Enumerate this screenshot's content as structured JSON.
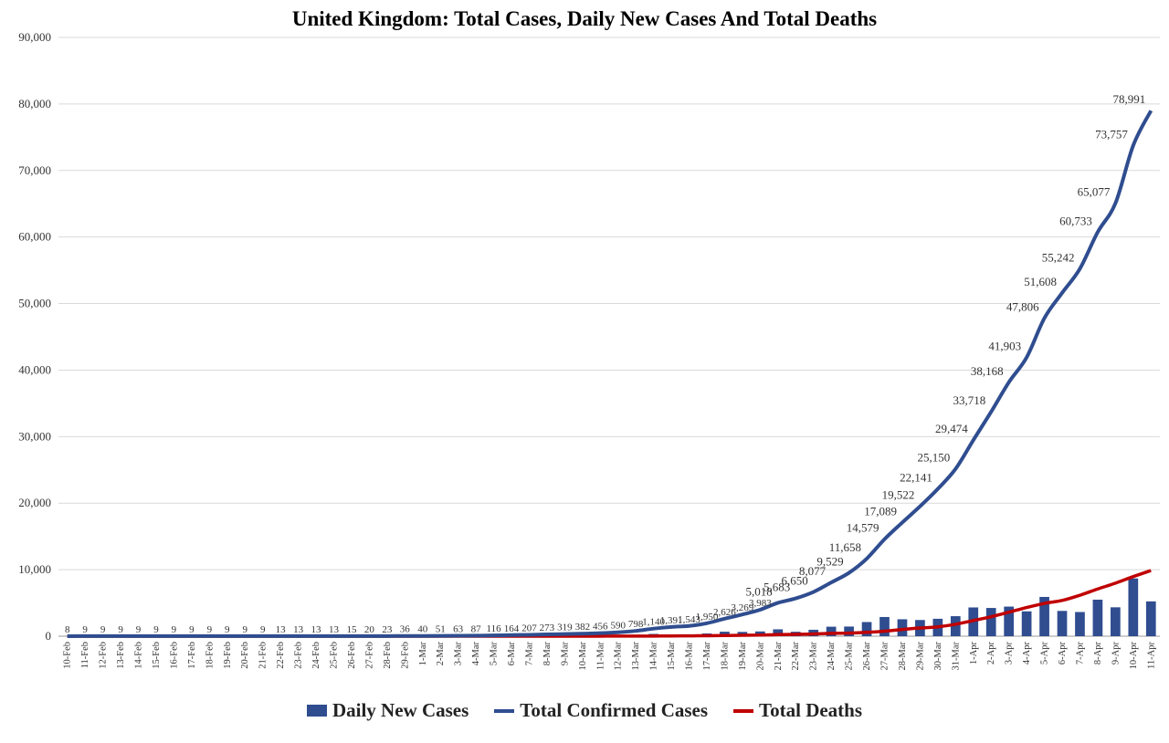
{
  "chart_data": {
    "type": "bar",
    "title": "United Kingdom: Total Cases, Daily New Cases And Total Deaths",
    "xlabel": "",
    "ylabel": "",
    "ylim": [
      0,
      90000
    ],
    "yticks": [
      "0",
      "10,000",
      "20,000",
      "30,000",
      "40,000",
      "50,000",
      "60,000",
      "70,000",
      "80,000",
      "90,000"
    ],
    "grid": true,
    "legend_position": "bottom",
    "categories": [
      "10-Feb",
      "11-Feb",
      "12-Feb",
      "13-Feb",
      "14-Feb",
      "15-Feb",
      "16-Feb",
      "17-Feb",
      "18-Feb",
      "19-Feb",
      "20-Feb",
      "21-Feb",
      "22-Feb",
      "23-Feb",
      "24-Feb",
      "25-Feb",
      "26-Feb",
      "27-Feb",
      "28-Feb",
      "29-Feb",
      "1-Mar",
      "2-Mar",
      "3-Mar",
      "4-Mar",
      "5-Mar",
      "6-Mar",
      "7-Mar",
      "8-Mar",
      "9-Mar",
      "10-Mar",
      "11-Mar",
      "12-Mar",
      "13-Mar",
      "14-Mar",
      "15-Mar",
      "16-Mar",
      "17-Mar",
      "18-Mar",
      "19-Mar",
      "20-Mar",
      "21-Mar",
      "22-Mar",
      "23-Mar",
      "24-Mar",
      "25-Mar",
      "26-Mar",
      "27-Mar",
      "28-Mar",
      "29-Mar",
      "30-Mar",
      "31-Mar",
      "1-Apr",
      "2-Apr",
      "3-Apr",
      "4-Apr",
      "5-Apr",
      "6-Apr",
      "7-Apr",
      "8-Apr",
      "9-Apr",
      "10-Apr",
      "11-Apr"
    ],
    "series": [
      {
        "name": "Daily New Cases",
        "type": "bar",
        "color": "#2f4d8f",
        "values": [
          0,
          1,
          0,
          0,
          0,
          0,
          0,
          0,
          0,
          0,
          0,
          0,
          4,
          0,
          0,
          0,
          2,
          5,
          3,
          13,
          4,
          11,
          12,
          34,
          29,
          48,
          43,
          67,
          46,
          50,
          83,
          134,
          209,
          342,
          251,
          152,
          407,
          676,
          643,
          714,
          1035,
          665,
          967,
          1427,
          1452,
          2129,
          2885,
          2546,
          2433,
          2619,
          3009,
          4324,
          4244,
          4450,
          3735,
          5903,
          3802,
          3634,
          5491,
          4344,
          8681,
          5234
        ]
      },
      {
        "name": "Total Confirmed Cases",
        "type": "line",
        "color": "#2f4d8f",
        "values": [
          8,
          9,
          9,
          9,
          9,
          9,
          9,
          9,
          9,
          9,
          9,
          9,
          13,
          13,
          13,
          13,
          15,
          20,
          23,
          36,
          40,
          51,
          63,
          87,
          116,
          164,
          207,
          273,
          319,
          382,
          456,
          590,
          798,
          1140,
          1391,
          1543,
          1950,
          2626,
          3269,
          3983,
          5018,
          5683,
          6650,
          8077,
          9529,
          11658,
          14579,
          17089,
          19522,
          22141,
          25150,
          29474,
          33718,
          38168,
          41903,
          47806,
          51608,
          55242,
          60733,
          65077,
          73757,
          78991
        ],
        "labels": [
          "8",
          "9",
          "9",
          "9",
          "9",
          "9",
          "9",
          "9",
          "9",
          "9",
          "9",
          "9",
          "13",
          "13",
          "13",
          "13",
          "15",
          "20",
          "23",
          "36",
          "40",
          "51",
          "63",
          "87",
          "116",
          "164",
          "207",
          "273",
          "319",
          "382",
          "456",
          "590",
          "798",
          "1,140",
          "1,391",
          "1,543",
          "1,950",
          "2,626",
          "3,269",
          "3,983",
          "5,018",
          "5,683",
          "6,650",
          "8,077",
          "9,529",
          "11,658",
          "14,579",
          "17,089",
          "19,522",
          "22,141",
          "25,150",
          "29,474",
          "33,718",
          "38,168",
          "41,903",
          "47,806",
          "51,608",
          "55,242",
          "60,733",
          "65,077",
          "73,757",
          "78,991"
        ]
      },
      {
        "name": "Total Deaths",
        "type": "line",
        "color": "#c00000",
        "values": [
          0,
          0,
          0,
          0,
          0,
          0,
          0,
          0,
          0,
          0,
          0,
          0,
          0,
          0,
          0,
          0,
          0,
          0,
          0,
          0,
          0,
          0,
          0,
          0,
          1,
          2,
          2,
          3,
          4,
          6,
          8,
          10,
          11,
          21,
          35,
          55,
          71,
          104,
          144,
          177,
          233,
          281,
          335,
          422,
          465,
          578,
          759,
          1019,
          1228,
          1408,
          1789,
          2352,
          2921,
          3605,
          4313,
          4934,
          5373,
          6159,
          7097,
          7978,
          8958,
          9875
        ]
      }
    ]
  }
}
